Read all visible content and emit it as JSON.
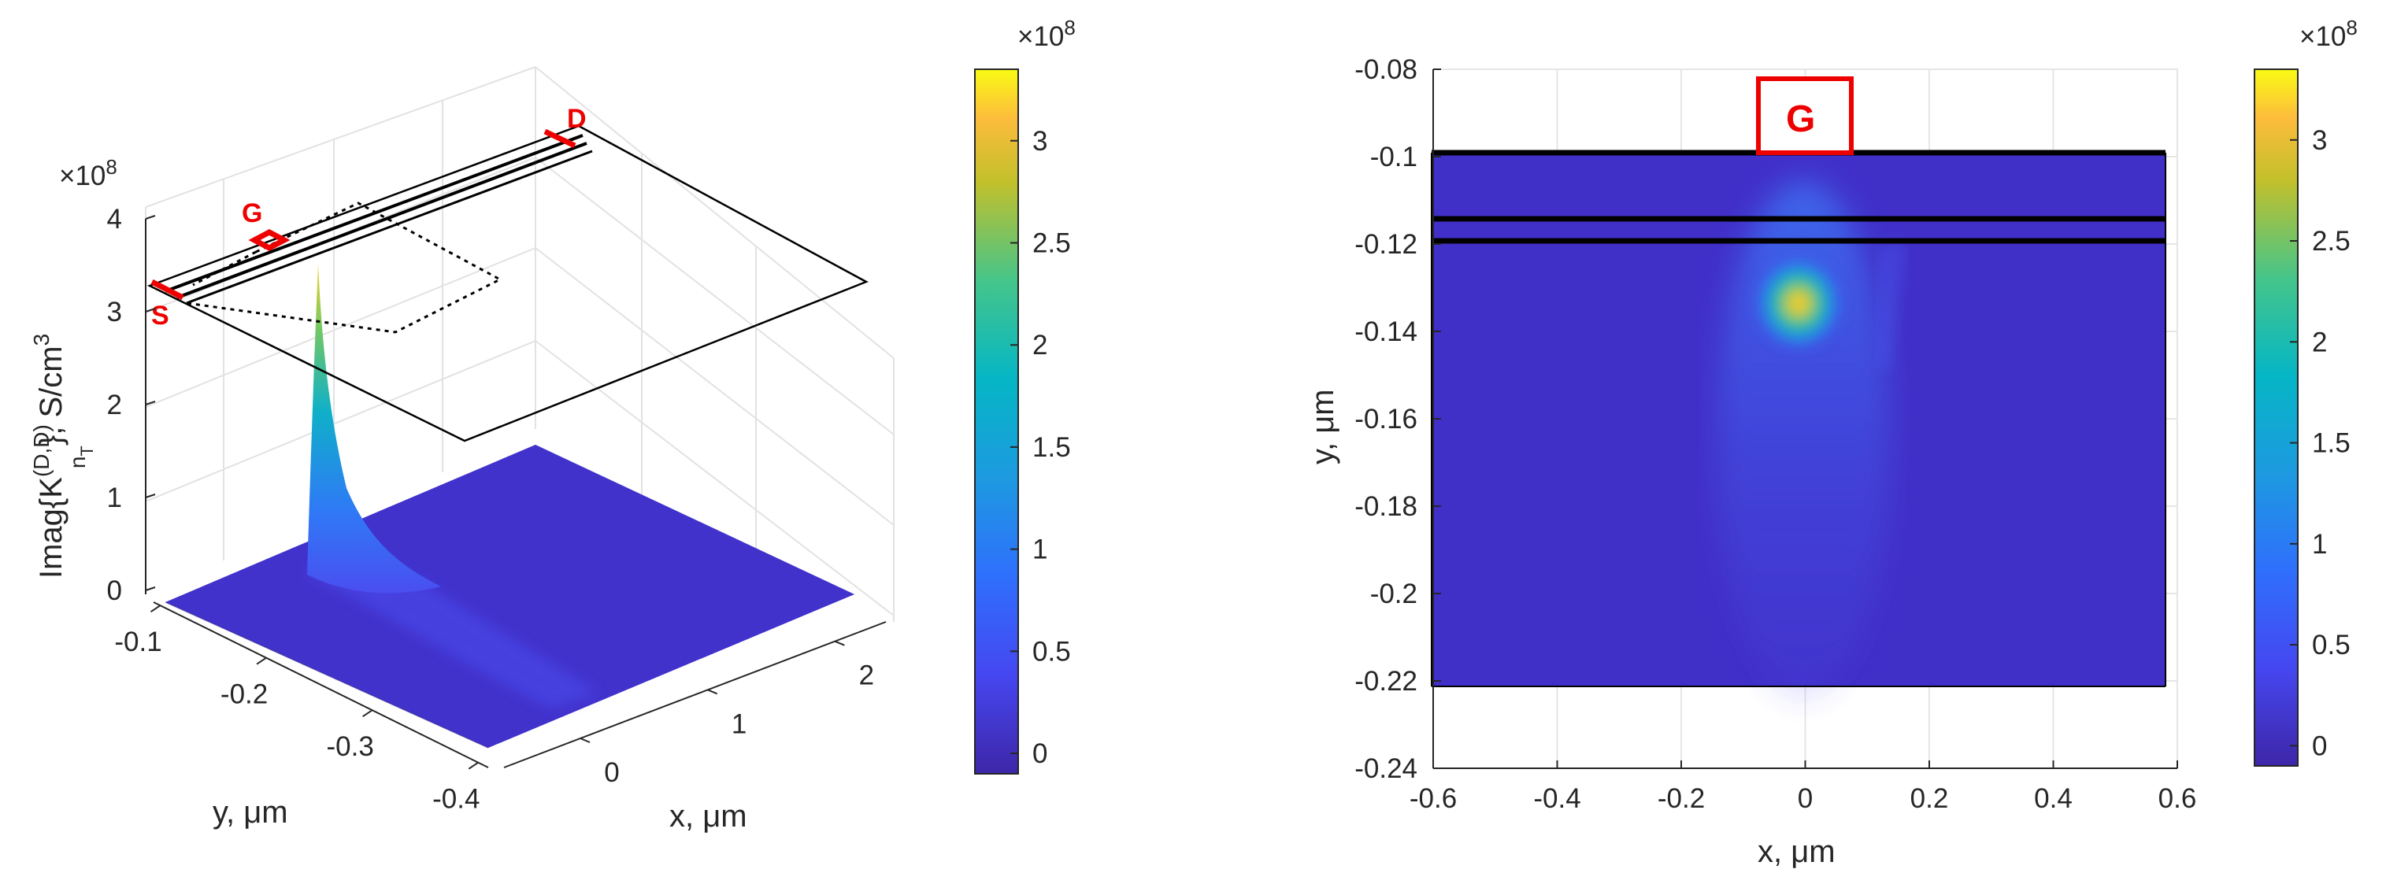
{
  "chart_data": [
    {
      "type": "surface",
      "view": "3d",
      "xlabel": "x, μm",
      "ylabel": "y, μm",
      "zlabel": "Imag{K",
      "zlabel_sup": "(D,D)",
      "zlabel_sub": "n",
      "zlabel_subsub": "T",
      "zlabel_tail": "}, S/cm",
      "zlabel_exp": "3",
      "exponent_label": "×10",
      "exponent_power": "8",
      "x_ticks": [
        "0",
        "1",
        "2"
      ],
      "y_ticks": [
        "-0.1",
        "-0.2",
        "-0.3",
        "-0.4"
      ],
      "z_ticks": [
        "0",
        "1",
        "2",
        "3",
        "4"
      ],
      "xlim": [
        -0.6,
        2.4
      ],
      "ylim": [
        -0.4,
        -0.08
      ],
      "zlim": [
        0,
        4
      ],
      "peak": {
        "x": 0.0,
        "y": -0.135,
        "z": 3.35
      },
      "device_labels": [
        "S",
        "G",
        "D"
      ],
      "colorbar": {
        "ticks": [
          "0",
          "0.5",
          "1",
          "1.5",
          "2",
          "2.5",
          "3"
        ],
        "min": -0.1,
        "max": 3.35,
        "exponent_label": "×10",
        "exponent_power": "8"
      }
    },
    {
      "type": "heatmap",
      "xlabel": "x, μm",
      "ylabel": "y, μm",
      "x_ticks": [
        "-0.6",
        "-0.4",
        "-0.2",
        "0",
        "0.2",
        "0.4",
        "0.6"
      ],
      "y_ticks": [
        "-0.08",
        "-0.1",
        "-0.12",
        "-0.14",
        "-0.16",
        "-0.18",
        "-0.2",
        "-0.22",
        "-0.24"
      ],
      "xlim": [
        -0.6,
        0.6
      ],
      "ylim": [
        -0.24,
        -0.08
      ],
      "data_region": {
        "x": [
          -0.6,
          0.58
        ],
        "y": [
          -0.222,
          -0.1
        ]
      },
      "layer_lines_y": [
        -0.1,
        -0.115,
        -0.12
      ],
      "peak": {
        "x": -0.01,
        "y": -0.133,
        "z": 3.35
      },
      "gate_label": "G",
      "colorbar": {
        "ticks": [
          "0",
          "0.5",
          "1",
          "1.5",
          "2",
          "2.5",
          "3"
        ],
        "min": -0.1,
        "max": 3.35,
        "exponent_label": "×10",
        "exponent_power": "8"
      }
    }
  ]
}
